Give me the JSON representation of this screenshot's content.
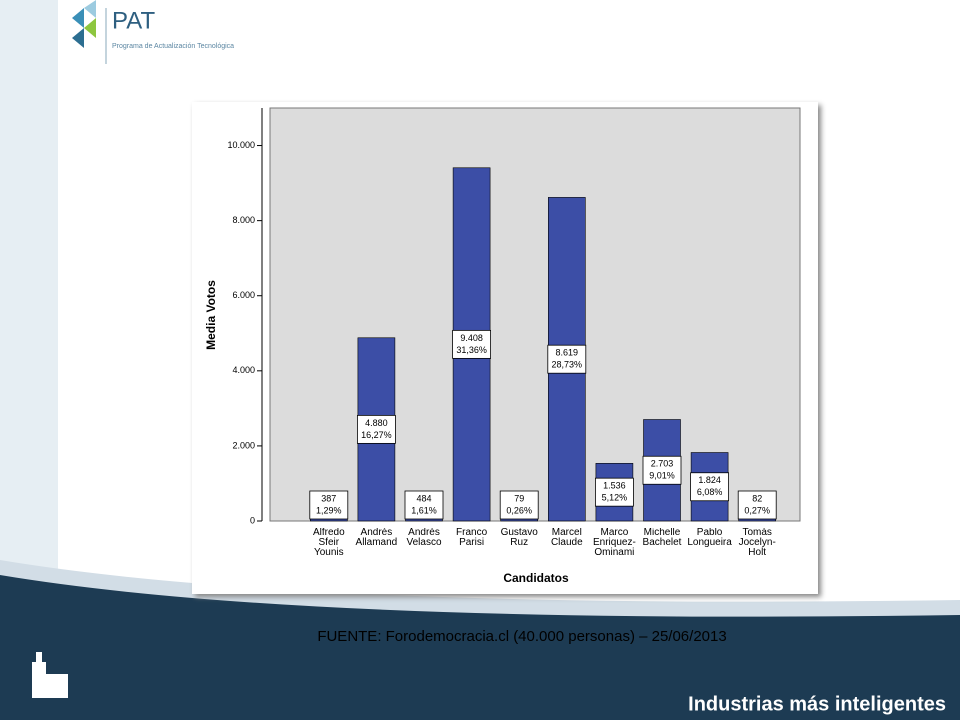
{
  "header": {
    "logo": "PAT",
    "logo_subtitle": "Programa de Actualización Tecnológica"
  },
  "chart_data": {
    "type": "bar",
    "categories": [
      "Alfredo Sfeir Younis",
      "Andrés Allamand",
      "Andrés Velasco",
      "Franco Parisi",
      "Gustavo Ruz",
      "Marcel Claude",
      "Marco Enriquez-Ominami",
      "Michelle Bachelet",
      "Pablo Longueira",
      "Tomás Jocelyn-Holt"
    ],
    "values": [
      387,
      4880,
      484,
      9408,
      79,
      8619,
      1536,
      2703,
      1824,
      82
    ],
    "value_labels": [
      "387",
      "4.880",
      "484",
      "9.408",
      "79",
      "8.619",
      "1.536",
      "2.703",
      "1.824",
      "82"
    ],
    "share_labels": [
      "1,29%",
      "16,27%",
      "1,61%",
      "31,36%",
      "0,26%",
      "28,73%",
      "5,12%",
      "9,01%",
      "6,08%",
      "0,27%"
    ],
    "color": "#3c4ea6",
    "ylabel": "Media Votos",
    "xlabel": "Candidatos",
    "ylim": [
      0,
      11000
    ],
    "yticks": [
      0,
      {
        "value": 2000,
        "label": "2.000"
      },
      {
        "value": 4000,
        "label": "4.000"
      },
      {
        "value": 6000,
        "label": "6.000"
      },
      {
        "value": 8000,
        "label": "8.000"
      },
      {
        "value": 10000,
        "label": "10.000"
      }
    ]
  },
  "source": "FUENTE: Forodemocracia.cl (40.000 personas) – 25/06/2013",
  "footer": {
    "tagline": "Industrias más inteligentes"
  }
}
